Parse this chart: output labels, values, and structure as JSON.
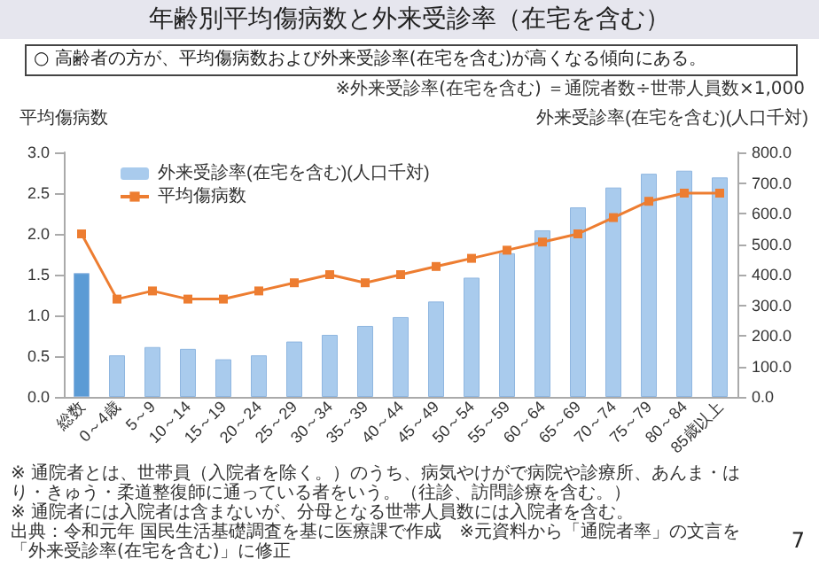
{
  "chart_data": {
    "type": "bar",
    "title": "年齢別平均傷病数と外来受診率（在宅を含む）",
    "subtitle": "○ 高齢者の方が、平均傷病数および外来受診率(在宅を含む)が高くなる傾向にある。",
    "ylabel": "平均傷病数",
    "y2label": "外来受診率(在宅を含む)(人口千対)",
    "categories": [
      "総数",
      "0～4歳",
      "5～9",
      "10～14",
      "15～19",
      "20～24",
      "25～29",
      "30～34",
      "35～39",
      "40～44",
      "45～49",
      "50～54",
      "55～59",
      "60～64",
      "65～69",
      "70～74",
      "75～79",
      "80～84",
      "85歳以上"
    ],
    "series": [
      {
        "name": "外来受診率(在宅を含む)(人口千対)",
        "axis": "y2",
        "color": "#a9cbed",
        "colors": [
          "#5b9bd5",
          "#a9cbed",
          "#a9cbed",
          "#a9cbed",
          "#a9cbed",
          "#a9cbed",
          "#a9cbed",
          "#a9cbed",
          "#a9cbed",
          "#a9cbed",
          "#a9cbed",
          "#a9cbed",
          "#a9cbed",
          "#a9cbed",
          "#a9cbed",
          "#a9cbed",
          "#a9cbed",
          "#a9cbed",
          "#a9cbed"
        ],
        "values": [
          405,
          136,
          163,
          157,
          123,
          136,
          181,
          203,
          232,
          261,
          312,
          390,
          470,
          545,
          620,
          685,
          730,
          740,
          718
        ]
      },
      {
        "name": "平均傷病数",
        "type": "line",
        "color": "#ed7d31",
        "values": [
          2.0,
          1.2,
          1.3,
          1.2,
          1.2,
          1.3,
          1.4,
          1.5,
          1.4,
          1.5,
          1.6,
          1.7,
          1.8,
          1.9,
          2.0,
          2.2,
          2.4,
          2.5,
          2.5
        ]
      }
    ],
    "ylim": [
      0,
      3
    ],
    "yticks": [
      {
        "value": 0,
        "label": "0.0"
      },
      {
        "value": 0.5,
        "label": "0.5"
      },
      {
        "value": 1,
        "label": "1.0"
      },
      {
        "value": 1.5,
        "label": "1.5"
      },
      {
        "value": 2,
        "label": "2.0"
      },
      {
        "value": 2.5,
        "label": "2.5"
      },
      {
        "value": 3,
        "label": "3.0"
      }
    ],
    "y2lim": [
      0,
      800
    ],
    "y2ticks": [
      {
        "value": 0,
        "label": "0.0"
      },
      {
        "value": 100,
        "label": "100.0"
      },
      {
        "value": 200,
        "label": "200.0"
      },
      {
        "value": 300,
        "label": "300.0"
      },
      {
        "value": 400,
        "label": "400.0"
      },
      {
        "value": 500,
        "label": "500.0"
      },
      {
        "value": 600,
        "label": "600.0"
      },
      {
        "value": 700,
        "label": "700.0"
      },
      {
        "value": 800,
        "label": "800.0"
      }
    ],
    "marker": "square",
    "grid": false,
    "legend": "top left",
    "annotations": [
      "※外来受診率(在宅を含む) ＝通院者数÷世帯人員数×1,000",
      "※ 通院者とは、世帯員（入院者を除く。）のうち、病気やけがで病院や診療所、あんま・はり・きゅう・柔道整復師に通っている者をいう。（往診、訪問診療を含む。）",
      "※ 通院者には入院者は含まないが、分母となる世帯人員数には入院者を含む。",
      "出典：令和元年 国民生活基礎調査を基に医療課で作成　※元資料から「通院者率」の文言を「外来受診率(在宅を含む)」に修正",
      "7"
    ]
  }
}
